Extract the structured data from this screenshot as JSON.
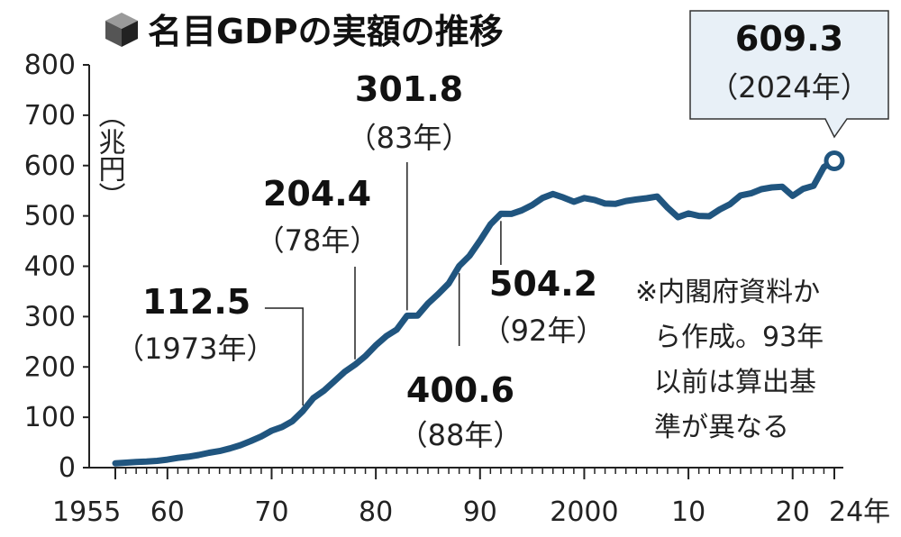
{
  "title": "名目GDPの実額の推移",
  "icon": "cube-icon",
  "colors": {
    "line": "#20557f",
    "callout_box_fill": "#e8f0f7",
    "text": "#111111",
    "axis": "#222222"
  },
  "note": [
    "※内閣府資料か",
    "ら作成。93年",
    "以前は算出基",
    "準が異なる"
  ],
  "chart_data": {
    "type": "line",
    "title": "名目GDPの実額の推移",
    "ylabel": "（兆円）",
    "ylim": [
      0,
      800
    ],
    "xlim": [
      1955,
      2024
    ],
    "grid": false,
    "yticks": [
      0,
      100,
      200,
      300,
      400,
      500,
      600,
      700,
      800
    ],
    "xtick_values": [
      1955,
      1960,
      1970,
      1980,
      1990,
      2000,
      2010,
      2020,
      2024
    ],
    "xtick_labels": [
      "1955",
      "60",
      "70",
      "80",
      "90",
      "2000",
      "10",
      "20",
      "24年"
    ],
    "series": [
      {
        "x": [
          1955,
          1956,
          1957,
          1958,
          1959,
          1960,
          1961,
          1962,
          1963,
          1964,
          1965,
          1966,
          1967,
          1968,
          1969,
          1970,
          1971,
          1972,
          1973,
          1974,
          1975,
          1976,
          1977,
          1978,
          1979,
          1980,
          1981,
          1982,
          1983,
          1984,
          1985,
          1986,
          1987,
          1988,
          1989,
          1990,
          1991,
          1992,
          1993,
          1994,
          1995,
          1996,
          1997,
          1998,
          1999,
          2000,
          2001,
          2002,
          2003,
          2004,
          2005,
          2006,
          2007,
          2008,
          2009,
          2010,
          2011,
          2012,
          2013,
          2014,
          2015,
          2016,
          2017,
          2018,
          2019,
          2020,
          2021,
          2022,
          2023,
          2024
        ],
        "values": [
          8.6,
          9.8,
          11.1,
          12.0,
          13.4,
          16.0,
          19.3,
          21.7,
          25.1,
          29.6,
          32.9,
          38.2,
          44.6,
          52.8,
          61.9,
          73.3,
          80.7,
          92.4,
          112.5,
          138.0,
          152.4,
          171.3,
          190.1,
          204.4,
          221.5,
          242.8,
          261.1,
          274.1,
          301.8,
          302.0,
          326.0,
          345.0,
          366.0,
          400.6,
          421.0,
          451.0,
          483.0,
          504.2,
          504.0,
          510.9,
          521.6,
          535.6,
          543.5,
          536.5,
          528.1,
          535.4,
          531.7,
          524.5,
          523.9,
          529.6,
          532.6,
          535.2,
          538.5,
          516.2,
          497.4,
          504.9,
          500.0,
          499.4,
          512.7,
          523.4,
          540.7,
          544.8,
          553.1,
          556.6,
          557.9,
          539.8,
          553.7,
          559.7,
          597.0,
          609.3
        ]
      }
    ],
    "callouts": [
      {
        "value": "112.5",
        "year": "（1973年）",
        "x": 1973,
        "y": 112.5
      },
      {
        "value": "204.4",
        "year": "（78年）",
        "x": 1978,
        "y": 204.4
      },
      {
        "value": "301.8",
        "year": "（83年）",
        "x": 1983,
        "y": 301.8
      },
      {
        "value": "400.6",
        "year": "（88年）",
        "x": 1988,
        "y": 400.6
      },
      {
        "value": "504.2",
        "year": "（92年）",
        "x": 1992,
        "y": 504.2
      },
      {
        "value": "609.3",
        "year": "（2024年）",
        "x": 2024,
        "y": 609.3
      }
    ]
  }
}
